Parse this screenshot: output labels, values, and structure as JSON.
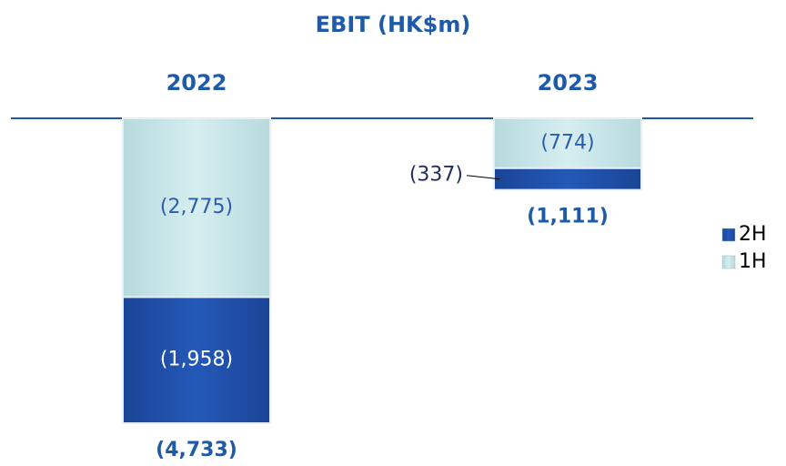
{
  "chart_data": {
    "type": "stacked_bar",
    "title": "EBIT (HK$m)",
    "categories": [
      "2022",
      "2023"
    ],
    "series": [
      {
        "name": "2H",
        "color": "#1f4fa8",
        "values": [
          -1958,
          -337
        ],
        "value_labels": [
          "(1,958)",
          "(337)"
        ]
      },
      {
        "name": "1H",
        "color": "#c9e7ea",
        "values": [
          -2775,
          -774
        ],
        "value_labels": [
          "(2,775)",
          "(774)"
        ]
      }
    ],
    "totals": {
      "values": [
        -4733,
        -1111
      ],
      "value_labels": [
        "(4,733)",
        "(1,111)"
      ]
    }
  }
}
